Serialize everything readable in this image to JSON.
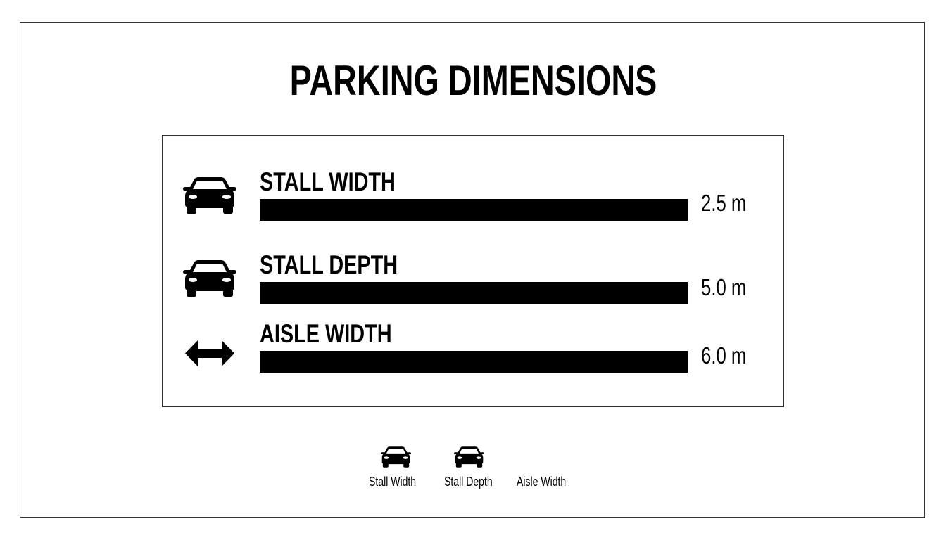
{
  "title": "PARKING DIMENSIONS",
  "rows": [
    {
      "label": "STALL WIDTH",
      "value": "2.5 m",
      "icon": "car-front-icon"
    },
    {
      "label": "STALL DEPTH",
      "value": "5.0 m",
      "icon": "car-front-icon"
    },
    {
      "label": "AISLE WIDTH",
      "value": "6.0 m",
      "icon": "double-arrow-icon"
    }
  ],
  "legend": [
    {
      "label": "Stall Width",
      "icon": "car-front-icon"
    },
    {
      "label": "Stall Depth",
      "icon": "car-front-icon"
    },
    {
      "label": "Aisle Width"
    }
  ],
  "colors": {
    "foreground": "#000000",
    "background": "#ffffff"
  }
}
